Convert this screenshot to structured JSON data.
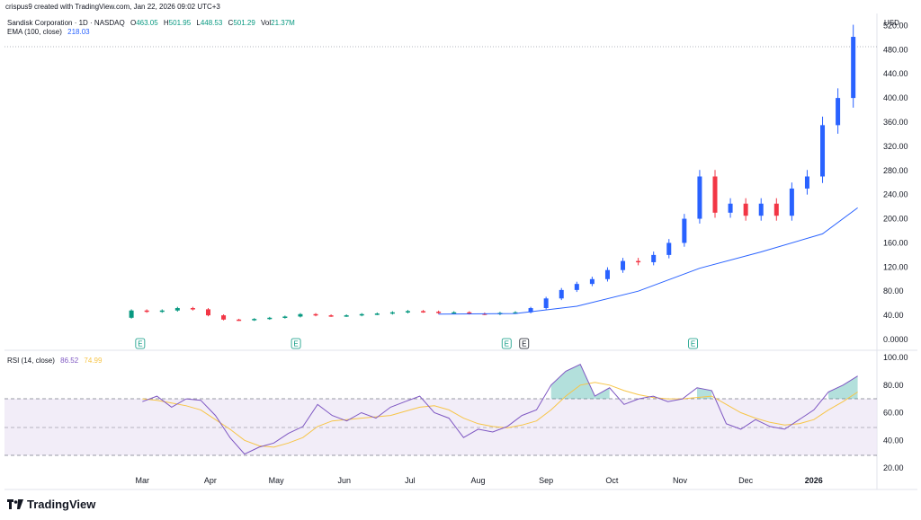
{
  "watermark_top": "crispus9 created with TradingView.com, Jan 22, 2026 09:02 UTC+3",
  "header": {
    "symbol": "Sandisk Corporation · 1D · NASDAQ",
    "o_label": "O",
    "o_value": "463.05",
    "h_label": "H",
    "h_value": "501.95",
    "l_label": "L",
    "l_value": "448.53",
    "c_label": "C",
    "c_value": "501.29",
    "vol_label": "Vol",
    "vol_value": "21.37M",
    "ema_label": "EMA (100, close)",
    "ema_value": "218.03"
  },
  "currency": "USD",
  "rsi_header": {
    "label": "RSI (14, close)",
    "rsi_value": "86.52",
    "ma_value": "74.99"
  },
  "brand": "TradingView",
  "colors": {
    "up": "#089981",
    "down": "#f23645",
    "blue_up": "#2962ff",
    "ema": "#2962ff",
    "rsi": "#7e57c2",
    "rsi_ma": "#f7c548",
    "grid": "#e0e3eb",
    "band": "#ede7f6"
  },
  "earnings_marker": "E",
  "dividend_marker": "E",
  "chart_data": [
    {
      "type": "candlestick",
      "title": "Sandisk Corporation · 1D · NASDAQ",
      "x_tick_labels": [
        "Mar",
        "Apr",
        "May",
        "Jun",
        "Jul",
        "Aug",
        "Sep",
        "Oct",
        "Nov",
        "Dec",
        "2026"
      ],
      "y_tick_labels": [
        "0.0000",
        "40.00",
        "80.00",
        "120.00",
        "160.00",
        "200.00",
        "240.00",
        "280.00",
        "320.00",
        "360.00",
        "400.00",
        "440.00",
        "480.00",
        "520.00"
      ],
      "ylim": [
        0,
        540
      ],
      "grid": false,
      "weekly_closes_approx": [
        {
          "x": "2025-02-17",
          "y": 36
        },
        {
          "x": "2025-02-24",
          "y": 48
        },
        {
          "x": "2025-03-03",
          "y": 46
        },
        {
          "x": "2025-03-10",
          "y": 48
        },
        {
          "x": "2025-03-17",
          "y": 52
        },
        {
          "x": "2025-03-24",
          "y": 50
        },
        {
          "x": "2025-03-31",
          "y": 40
        },
        {
          "x": "2025-04-07",
          "y": 33
        },
        {
          "x": "2025-04-14",
          "y": 32
        },
        {
          "x": "2025-04-21",
          "y": 34
        },
        {
          "x": "2025-04-28",
          "y": 36
        },
        {
          "x": "2025-05-05",
          "y": 38
        },
        {
          "x": "2025-05-12",
          "y": 42
        },
        {
          "x": "2025-05-19",
          "y": 40
        },
        {
          "x": "2025-05-26",
          "y": 39
        },
        {
          "x": "2025-06-02",
          "y": 40
        },
        {
          "x": "2025-06-09",
          "y": 42
        },
        {
          "x": "2025-06-16",
          "y": 43
        },
        {
          "x": "2025-06-23",
          "y": 45
        },
        {
          "x": "2025-06-30",
          "y": 47
        },
        {
          "x": "2025-07-07",
          "y": 46
        },
        {
          "x": "2025-07-14",
          "y": 44
        },
        {
          "x": "2025-07-21",
          "y": 45
        },
        {
          "x": "2025-07-28",
          "y": 43
        },
        {
          "x": "2025-08-04",
          "y": 42
        },
        {
          "x": "2025-08-11",
          "y": 44
        },
        {
          "x": "2025-08-18",
          "y": 45
        },
        {
          "x": "2025-08-25",
          "y": 52
        },
        {
          "x": "2025-09-01",
          "y": 68
        },
        {
          "x": "2025-09-08",
          "y": 82
        },
        {
          "x": "2025-09-15",
          "y": 92
        },
        {
          "x": "2025-09-22",
          "y": 100
        },
        {
          "x": "2025-09-29",
          "y": 115
        },
        {
          "x": "2025-10-06",
          "y": 130
        },
        {
          "x": "2025-10-13",
          "y": 128
        },
        {
          "x": "2025-10-20",
          "y": 140
        },
        {
          "x": "2025-10-27",
          "y": 160
        },
        {
          "x": "2025-11-03",
          "y": 200
        },
        {
          "x": "2025-11-10",
          "y": 270
        },
        {
          "x": "2025-11-17",
          "y": 210
        },
        {
          "x": "2025-11-24",
          "y": 225
        },
        {
          "x": "2025-12-01",
          "y": 205
        },
        {
          "x": "2025-12-08",
          "y": 225
        },
        {
          "x": "2025-12-15",
          "y": 205
        },
        {
          "x": "2025-12-22",
          "y": 250
        },
        {
          "x": "2025-12-29",
          "y": 270
        },
        {
          "x": "2026-01-05",
          "y": 355
        },
        {
          "x": "2026-01-12",
          "y": 400
        },
        {
          "x": "2026-01-19",
          "y": 501.29
        }
      ],
      "ema_100_approx": [
        {
          "x": "2025-07-14",
          "y": 42
        },
        {
          "x": "2025-08-18",
          "y": 43
        },
        {
          "x": "2025-09-15",
          "y": 55
        },
        {
          "x": "2025-10-13",
          "y": 80
        },
        {
          "x": "2025-11-10",
          "y": 118
        },
        {
          "x": "2025-12-08",
          "y": 145
        },
        {
          "x": "2026-01-05",
          "y": 175
        },
        {
          "x": "2026-01-21",
          "y": 218.03
        }
      ],
      "markers": [
        {
          "x": "2025-03",
          "label": "E"
        },
        {
          "x": "2025-05",
          "label": "E"
        },
        {
          "x": "2025-08",
          "label": "E"
        },
        {
          "x": "2025-08",
          "label": "E"
        },
        {
          "x": "2025-11",
          "label": "E"
        }
      ]
    },
    {
      "type": "line",
      "title": "RSI (14, close)",
      "y_tick_labels": [
        "20.00",
        "40.00",
        "60.00",
        "80.00",
        "100.00"
      ],
      "ylim": [
        20,
        100
      ],
      "bands": [
        30,
        50,
        70
      ],
      "series": [
        {
          "name": "RSI",
          "values": [
            68,
            72,
            64,
            70,
            69,
            58,
            42,
            30,
            35,
            38,
            45,
            50,
            66,
            58,
            54,
            60,
            56,
            64,
            68,
            72,
            60,
            56,
            42,
            48,
            46,
            50,
            58,
            62,
            80,
            90,
            95,
            72,
            78,
            66,
            70,
            72,
            68,
            70,
            78,
            76,
            52,
            48,
            55,
            50,
            48,
            55,
            62,
            75,
            80,
            86.52
          ]
        },
        {
          "name": "RSI-based MA",
          "values": [
            70,
            69,
            67,
            65,
            62,
            55,
            48,
            40,
            36,
            35,
            38,
            42,
            50,
            54,
            55,
            56,
            57,
            58,
            61,
            64,
            65,
            62,
            56,
            52,
            50,
            49,
            51,
            54,
            62,
            72,
            80,
            82,
            80,
            76,
            73,
            71,
            70,
            70,
            71,
            72,
            66,
            60,
            56,
            53,
            51,
            52,
            55,
            62,
            68,
            74.99
          ]
        }
      ]
    }
  ]
}
